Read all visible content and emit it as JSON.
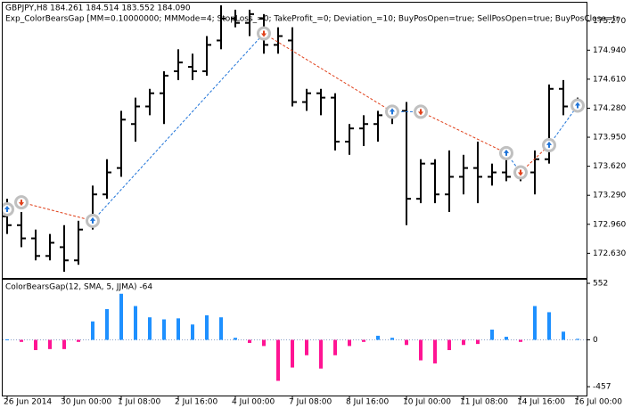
{
  "chart_data": [
    {
      "type": "ohlc",
      "title": "GBPJPY,H8  184.261 184.514 183.552 184.090",
      "subtitle": "Exp_ColorBearsGap [MM=0.10000000; MMMode=4; StopLoss_=0; TakeProfit_=0; Deviation_=10; BuyPosOpen=true; SellPosOpen=true; BuyPosClose=tr",
      "open": [
        173.05,
        172.95,
        172.8,
        172.6,
        172.7,
        172.55,
        172.95,
        173.3,
        173.6,
        174.1,
        174.3,
        174.45,
        174.7,
        174.75,
        174.7,
        175.05,
        175.3,
        175.25,
        175.3,
        175.0,
        175.05,
        174.35,
        174.45,
        174.4,
        173.9,
        174.05,
        174.1,
        174.2,
        174.25,
        173.25,
        173.65,
        173.3,
        173.5,
        173.6,
        173.5,
        173.55,
        173.5,
        173.55,
        173.7,
        174.5,
        174.3
      ],
      "high": [
        173.25,
        173.1,
        172.9,
        172.85,
        172.95,
        173.0,
        173.4,
        173.7,
        174.25,
        174.4,
        174.5,
        174.7,
        174.95,
        174.9,
        175.1,
        175.45,
        175.4,
        175.4,
        175.35,
        175.2,
        175.2,
        174.5,
        174.5,
        174.45,
        174.1,
        174.2,
        174.25,
        174.3,
        174.35,
        173.7,
        173.7,
        173.8,
        173.75,
        173.9,
        173.65,
        173.7,
        173.6,
        173.8,
        174.55,
        174.6,
        174.4
      ],
      "low": [
        172.85,
        172.7,
        172.55,
        172.55,
        172.42,
        172.5,
        172.9,
        173.25,
        173.5,
        173.9,
        174.2,
        174.1,
        174.6,
        174.6,
        174.65,
        174.95,
        175.2,
        175.1,
        174.9,
        174.9,
        174.3,
        174.25,
        174.2,
        173.8,
        173.75,
        173.85,
        173.9,
        174.1,
        172.95,
        173.2,
        173.2,
        173.1,
        173.3,
        173.2,
        173.4,
        173.45,
        173.45,
        173.3,
        173.65,
        174.2,
        174.25
      ],
      "close": [
        172.95,
        172.8,
        172.6,
        172.75,
        172.55,
        172.9,
        173.3,
        173.55,
        174.15,
        174.3,
        174.45,
        174.65,
        174.8,
        174.7,
        175.0,
        175.3,
        175.25,
        175.35,
        175.0,
        175.1,
        174.35,
        174.45,
        174.4,
        173.9,
        174.05,
        174.1,
        174.2,
        174.25,
        173.25,
        173.65,
        173.3,
        173.5,
        173.6,
        173.5,
        173.55,
        173.5,
        173.55,
        173.7,
        174.5,
        174.3,
        174.35
      ],
      "color": "#000000",
      "signals": [
        {
          "bar": 0,
          "price": 173.13,
          "side": "buy"
        },
        {
          "bar": 1,
          "price": 173.21,
          "side": "sell"
        },
        {
          "bar": 6,
          "price": 173.0,
          "side": "buy"
        },
        {
          "bar": 18,
          "price": 175.13,
          "side": "sell"
        },
        {
          "bar": 27,
          "price": 174.24,
          "side": "buy"
        },
        {
          "bar": 29,
          "price": 174.24,
          "side": "sell"
        },
        {
          "bar": 35,
          "price": 173.77,
          "side": "buy"
        },
        {
          "bar": 36,
          "price": 173.55,
          "side": "sell"
        },
        {
          "bar": 38,
          "price": 173.86,
          "side": "buy"
        },
        {
          "bar": 40,
          "price": 174.31,
          "side": "buy"
        }
      ],
      "buy_color": "#1e73d8",
      "sell_color": "#e0401a",
      "ylim": [
        172.35,
        175.48
      ],
      "yticks": [
        {
          "value": 175.27,
          "label": "175.270"
        },
        {
          "value": 174.94,
          "label": "174.940"
        },
        {
          "value": 174.61,
          "label": "174.610"
        },
        {
          "value": 174.28,
          "label": "174.280"
        },
        {
          "value": 173.95,
          "label": "173.950"
        },
        {
          "value": 173.62,
          "label": "173.620"
        },
        {
          "value": 173.29,
          "label": "173.290"
        },
        {
          "value": 172.96,
          "label": "172.960"
        },
        {
          "value": 172.63,
          "label": "172.630"
        }
      ]
    },
    {
      "type": "bar",
      "title": "ColorBearsGap(12, SMA, 5, JJMA) -64",
      "categories": [
        "26 Jun 2014",
        null,
        null,
        null,
        "30 Jun 00:00",
        null,
        null,
        null,
        "1 Jul 08:00",
        null,
        null,
        null,
        "2 Jul 16:00",
        null,
        null,
        null,
        "4 Jul 00:00",
        null,
        null,
        null,
        "7 Jul 08:00",
        null,
        null,
        null,
        "8 Jul 16:00",
        null,
        null,
        null,
        "10 Jul 00:00",
        null,
        null,
        null,
        "11 Jul 08:00",
        null,
        null,
        null,
        "14 Jul 16:00",
        null,
        null,
        null,
        "16 Jul 00:00"
      ],
      "values": [
        5,
        -20,
        -100,
        -90,
        -90,
        -20,
        180,
        300,
        450,
        330,
        220,
        200,
        210,
        150,
        240,
        220,
        20,
        -30,
        -60,
        -400,
        -270,
        -150,
        -280,
        -150,
        -60,
        -20,
        40,
        20,
        -50,
        -200,
        -230,
        -100,
        -50,
        -40,
        100,
        30,
        -20,
        330,
        270,
        80,
        10
      ],
      "up_color": "#1e90ff",
      "down_color": "#ff1493",
      "ylim": [
        -552,
        587
      ],
      "yticks": [
        552,
        0,
        -457
      ]
    }
  ]
}
